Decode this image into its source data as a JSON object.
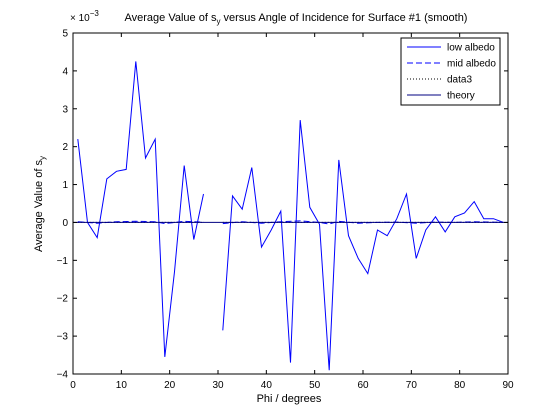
{
  "chart_data": {
    "type": "line",
    "title": "Average Value of s_y versus Angle of Incidence for Surface #1 (smooth)",
    "title_parts": {
      "before": "Average Value of s",
      "sub": "y",
      "after": " versus Angle of Incidence for Surface #1 (smooth)"
    },
    "xlabel": "Phi / degrees",
    "ylabel": "Average Value of s_y",
    "ylabel_parts": {
      "before": "Average Value of s",
      "sub": "y"
    },
    "exponent_label": {
      "base": "× 10",
      "exp": "−3"
    },
    "xlim": [
      0,
      90
    ],
    "ylim": [
      -4,
      5
    ],
    "xticks": [
      0,
      10,
      20,
      30,
      40,
      50,
      60,
      70,
      80,
      90
    ],
    "yticks": [
      -4,
      -3,
      -2,
      -1,
      0,
      1,
      2,
      3,
      4,
      5
    ],
    "ytick_labels": [
      "−4",
      "−3",
      "−2",
      "−1",
      "0",
      "1",
      "2",
      "3",
      "4",
      "5"
    ],
    "grid": false,
    "legend_position": "top-right",
    "series": [
      {
        "name": "low albedo",
        "color": "#0000ff",
        "dash": "solid",
        "segments": [
          [
            [
              1,
              2.2
            ],
            [
              3,
              0
            ],
            [
              5,
              -0.4
            ],
            [
              7,
              1.15
            ],
            [
              9,
              1.35
            ],
            [
              11,
              1.4
            ],
            [
              13,
              4.25
            ],
            [
              15,
              1.7
            ],
            [
              17,
              2.2
            ],
            [
              19,
              -3.55
            ],
            [
              21,
              -1.3
            ],
            [
              23,
              1.5
            ],
            [
              25,
              -0.45
            ],
            [
              27,
              0.75
            ]
          ],
          [
            [
              31,
              -2.85
            ],
            [
              33,
              0.7
            ],
            [
              35,
              0.35
            ],
            [
              37,
              1.45
            ],
            [
              39,
              -0.65
            ],
            [
              41,
              -0.2
            ],
            [
              43,
              0.3
            ],
            [
              45,
              -3.7
            ],
            [
              47,
              2.7
            ],
            [
              49,
              0.4
            ],
            [
              51,
              -0.05
            ],
            [
              53,
              -3.9
            ],
            [
              55,
              1.65
            ],
            [
              57,
              -0.35
            ],
            [
              59,
              -0.95
            ],
            [
              61,
              -1.35
            ],
            [
              63,
              -0.2
            ],
            [
              65,
              -0.35
            ],
            [
              67,
              0.1
            ],
            [
              69,
              0.75
            ],
            [
              71,
              -0.95
            ],
            [
              73,
              -0.2
            ],
            [
              75,
              0.15
            ],
            [
              77,
              -0.25
            ],
            [
              79,
              0.15
            ],
            [
              81,
              0.25
            ],
            [
              83,
              0.55
            ],
            [
              85,
              0.1
            ],
            [
              87,
              0.1
            ],
            [
              89,
              0
            ]
          ]
        ]
      },
      {
        "name": "mid albedo",
        "color": "#0000ff",
        "dash": "dashed",
        "segments": [
          [
            [
              1,
              0.02
            ],
            [
              5,
              -0.02
            ],
            [
              9,
              0.02
            ],
            [
              13,
              0.03
            ],
            [
              17,
              0.02
            ],
            [
              19,
              -0.03
            ],
            [
              23,
              0.03
            ],
            [
              27,
              0.01
            ]
          ],
          [
            [
              31,
              -0.03
            ],
            [
              35,
              0.02
            ],
            [
              39,
              -0.02
            ],
            [
              43,
              0.02
            ],
            [
              47,
              0.04
            ],
            [
              51,
              0.0
            ],
            [
              53,
              -0.04
            ],
            [
              55,
              0.03
            ],
            [
              59,
              -0.02
            ],
            [
              63,
              0.0
            ],
            [
              67,
              0.01
            ],
            [
              71,
              -0.02
            ],
            [
              75,
              0.01
            ],
            [
              79,
              0.0
            ],
            [
              83,
              0.02
            ],
            [
              89,
              0.0
            ]
          ]
        ]
      },
      {
        "name": "data3",
        "color": "#000000",
        "dash": "dotted",
        "segments": [
          [
            [
              1,
              0.0
            ],
            [
              27,
              0.0
            ]
          ],
          [
            [
              31,
              0.0
            ],
            [
              89,
              0.0
            ]
          ]
        ]
      },
      {
        "name": "theory",
        "color": "#000080",
        "dash": "solid",
        "segments": [
          [
            [
              0,
              0.0
            ],
            [
              90,
              0.0
            ]
          ]
        ]
      }
    ]
  }
}
